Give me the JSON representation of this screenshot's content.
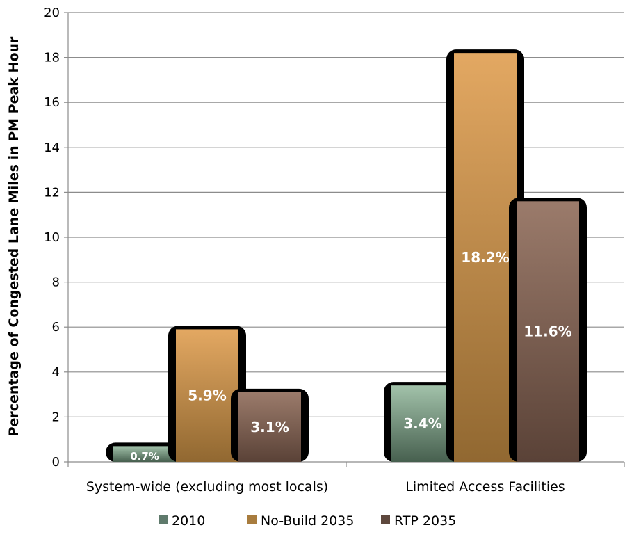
{
  "chart_data": {
    "type": "bar",
    "title": "",
    "xlabel": "",
    "ylabel": "Percentage of Congested Lane Miles in PM Peak Hour",
    "ylim": [
      0,
      20
    ],
    "yticks": [
      "0",
      "2",
      "4",
      "6",
      "8",
      "10",
      "12",
      "14",
      "16",
      "18",
      "20"
    ],
    "grid": true,
    "legend_position": "bottom",
    "categories": [
      "System-wide (excluding most locals)",
      "Limited Access Facilities"
    ],
    "series": [
      {
        "name": "2010",
        "values": [
          0.7,
          3.4
        ],
        "labels": [
          "0.7%",
          "3.4%"
        ],
        "color": "#a2c2aa",
        "legend_color": "#5f7a6c",
        "dark": "#47604f"
      },
      {
        "name": "No-Build 2035",
        "values": [
          5.9,
          18.2
        ],
        "labels": [
          "5.9%",
          "18.2%"
        ],
        "color": "#e3a862",
        "legend_color": "#a87c3e",
        "dark": "#916831"
      },
      {
        "name": "RTP 2035",
        "values": [
          3.1,
          11.6
        ],
        "labels": [
          "3.1%",
          "11.6%"
        ],
        "color": "#9b7b6b",
        "legend_color": "#5e483d",
        "dark": "#5a4237"
      }
    ]
  }
}
